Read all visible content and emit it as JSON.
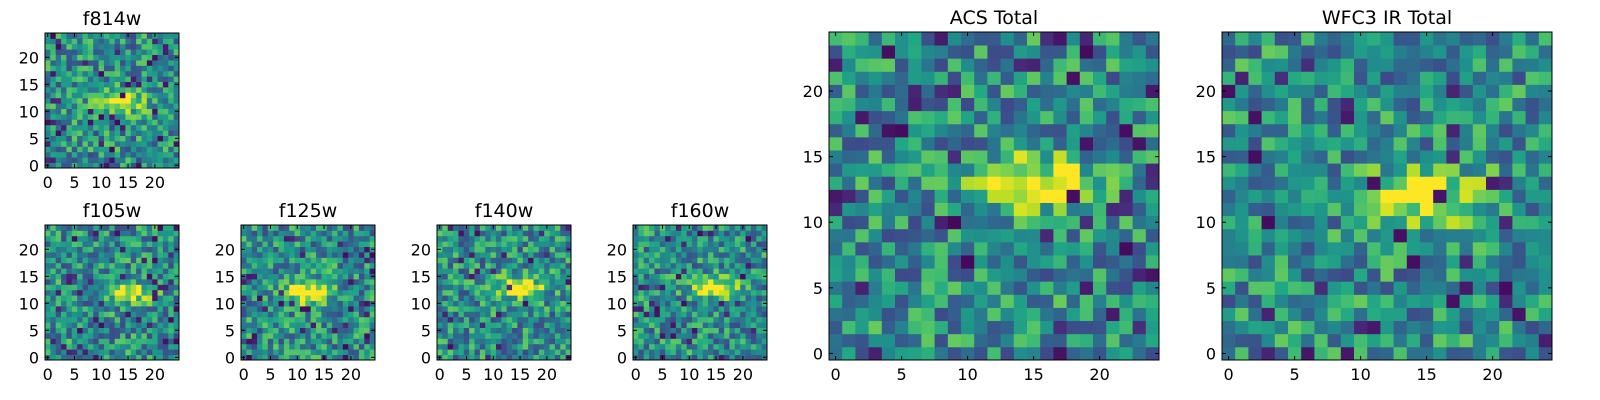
{
  "chart_data": [
    {
      "type": "heatmap",
      "title": "f814w",
      "xticks": [
        "0",
        "5",
        "10",
        "15",
        "20"
      ],
      "yticks": [
        "0",
        "5",
        "10",
        "15",
        "20"
      ],
      "xlim": [
        -0.5,
        24.5
      ],
      "ylim": [
        -0.5,
        24.5
      ],
      "colormap": "viridis",
      "grid": false,
      "blob_center": [
        14,
        12
      ],
      "blob_strength": 0.55,
      "seed": 11
    },
    {
      "type": "heatmap",
      "title": "f105w",
      "xticks": [
        "0",
        "5",
        "10",
        "15",
        "20"
      ],
      "yticks": [
        "0",
        "5",
        "10",
        "15",
        "20"
      ],
      "xlim": [
        -0.5,
        24.5
      ],
      "ylim": [
        -0.5,
        24.5
      ],
      "colormap": "viridis",
      "grid": false,
      "blob_center": [
        15,
        12
      ],
      "blob_strength": 0.45,
      "seed": 23
    },
    {
      "type": "heatmap",
      "title": "f125w",
      "xticks": [
        "0",
        "5",
        "10",
        "15",
        "20"
      ],
      "yticks": [
        "0",
        "5",
        "10",
        "15",
        "20"
      ],
      "xlim": [
        -0.5,
        24.5
      ],
      "ylim": [
        -0.5,
        24.5
      ],
      "colormap": "viridis",
      "grid": false,
      "blob_center": [
        12,
        12
      ],
      "blob_strength": 0.6,
      "seed": 37
    },
    {
      "type": "heatmap",
      "title": "f140w",
      "xticks": [
        "0",
        "5",
        "10",
        "15",
        "20"
      ],
      "yticks": [
        "0",
        "5",
        "10",
        "15",
        "20"
      ],
      "xlim": [
        -0.5,
        24.5
      ],
      "ylim": [
        -0.5,
        24.5
      ],
      "colormap": "viridis",
      "grid": false,
      "blob_center": [
        15,
        13
      ],
      "blob_strength": 0.55,
      "seed": 41
    },
    {
      "type": "heatmap",
      "title": "f160w",
      "xticks": [
        "0",
        "5",
        "10",
        "15",
        "20"
      ],
      "yticks": [
        "0",
        "5",
        "10",
        "15",
        "20"
      ],
      "xlim": [
        -0.5,
        24.5
      ],
      "ylim": [
        -0.5,
        24.5
      ],
      "colormap": "viridis",
      "grid": false,
      "blob_center": [
        15,
        13
      ],
      "blob_strength": 0.55,
      "seed": 53
    },
    {
      "type": "heatmap",
      "title": "ACS Total",
      "xticks": [
        "0",
        "5",
        "10",
        "15",
        "20"
      ],
      "yticks": [
        "0",
        "5",
        "10",
        "15",
        "20"
      ],
      "xlim": [
        -0.5,
        24.5
      ],
      "ylim": [
        -0.5,
        24.5
      ],
      "colormap": "viridis",
      "grid": false,
      "blob_center": [
        15,
        13
      ],
      "blob_strength": 0.55,
      "seed": 67
    },
    {
      "type": "heatmap",
      "title": "WFC3 IR Total",
      "xticks": [
        "0",
        "5",
        "10",
        "15",
        "20"
      ],
      "yticks": [
        "0",
        "5",
        "10",
        "15",
        "20"
      ],
      "xlim": [
        -0.5,
        24.5
      ],
      "ylim": [
        -0.5,
        24.5
      ],
      "colormap": "viridis",
      "grid": false,
      "blob_center": [
        15,
        12
      ],
      "blob_strength": 0.5,
      "seed": 79
    }
  ]
}
